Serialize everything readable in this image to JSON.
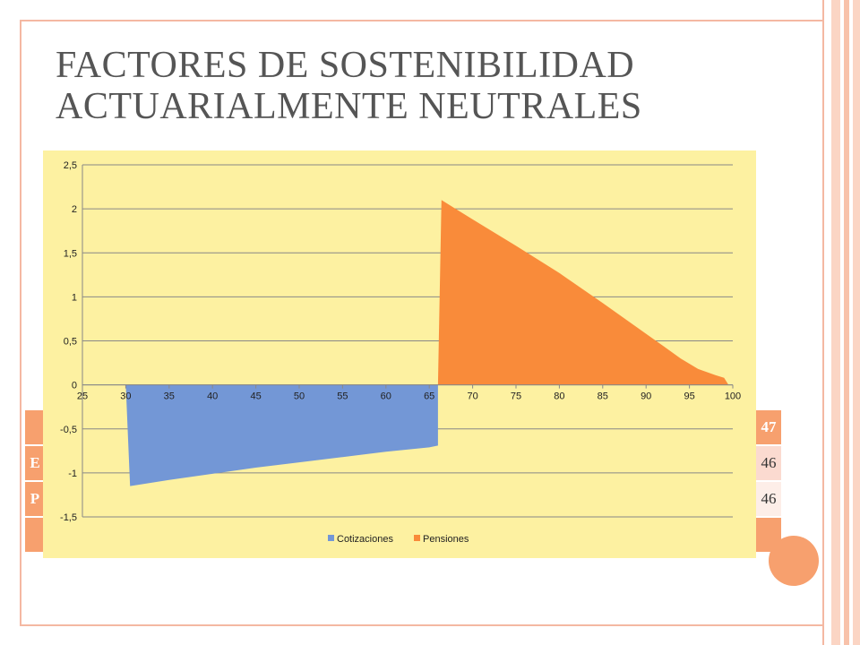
{
  "slide": {
    "title_line1": "FACTORES DE SOSTENIBILIDAD",
    "title_line2": "ACTUARIALMENTE NEUTRALES",
    "colors": {
      "title": "#555555",
      "accent": "#f7a06e",
      "frame": "#f4b8a2"
    }
  },
  "table_fragment": {
    "rows": [
      {
        "left": "",
        "right": "47"
      },
      {
        "left": "E",
        "right": "46"
      },
      {
        "left": "P",
        "right": "46"
      },
      {
        "left": "",
        "right": ""
      }
    ]
  },
  "chart_data": {
    "type": "area",
    "xlim": [
      25,
      100
    ],
    "ylim": [
      -1.5,
      2.5
    ],
    "x_ticks": [
      25,
      30,
      35,
      40,
      45,
      50,
      55,
      60,
      65,
      70,
      75,
      80,
      85,
      90,
      95,
      100
    ],
    "y_ticks": [
      2.5,
      2,
      1.5,
      1,
      0.5,
      0,
      -0.5,
      -1,
      -1.5
    ],
    "x_tick_labels": [
      "25",
      "30",
      "35",
      "40",
      "45",
      "50",
      "55",
      "60",
      "65",
      "70",
      "75",
      "80",
      "85",
      "90",
      "95",
      "100"
    ],
    "y_tick_labels": [
      "2,5",
      "2",
      "1,5",
      "1",
      "0,5",
      "0",
      "-0,5",
      "-1",
      "-1,5"
    ],
    "grid": true,
    "legend_position": "bottom",
    "series": [
      {
        "name": "Cotizaciones",
        "color": "#7397d6",
        "x": [
          30,
          30.5,
          35,
          40,
          45,
          50,
          55,
          60,
          65,
          66
        ],
        "y": [
          0,
          -1.15,
          -1.08,
          -1.01,
          -0.94,
          -0.88,
          -0.82,
          -0.76,
          -0.71,
          -0.69
        ]
      },
      {
        "name": "Pensiones",
        "color": "#f98b3a",
        "x": [
          66,
          66.4,
          70,
          75,
          80,
          85,
          90,
          92,
          94,
          96,
          98,
          99,
          99.5
        ],
        "y": [
          0,
          2.1,
          1.88,
          1.58,
          1.27,
          0.93,
          0.58,
          0.44,
          0.3,
          0.18,
          0.11,
          0.08,
          0
        ]
      }
    ]
  }
}
